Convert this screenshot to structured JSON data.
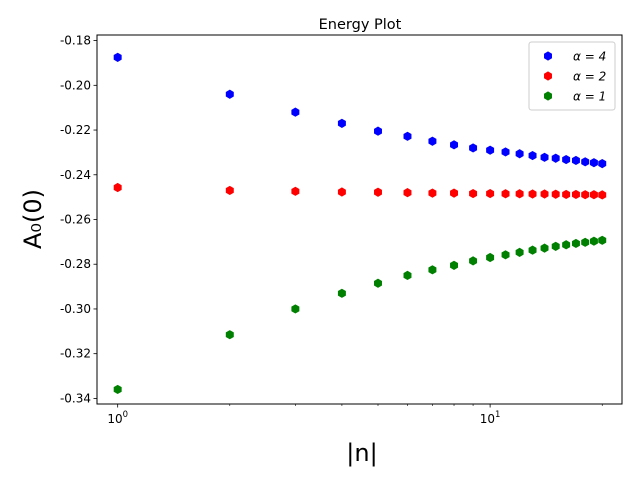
{
  "chart_data": {
    "type": "scatter",
    "title": "Energy Plot",
    "xlabel": "|n|",
    "ylabel": "A₀(0)",
    "xscale": "log",
    "xlim": [
      0.88,
      22.6
    ],
    "ylim": [
      -0.3425,
      -0.1775
    ],
    "xticks": [
      {
        "value": 1,
        "base": "10",
        "exp": "0"
      },
      {
        "value": 10,
        "base": "10",
        "exp": "1"
      }
    ],
    "yticks": [
      "-0.18",
      "-0.20",
      "-0.22",
      "-0.24",
      "-0.26",
      "-0.28",
      "-0.30",
      "-0.32",
      "-0.34"
    ],
    "ytick_values": [
      -0.18,
      -0.2,
      -0.22,
      -0.24,
      -0.26,
      -0.28,
      -0.3,
      -0.32,
      -0.34
    ],
    "x": [
      1,
      2,
      3,
      4,
      5,
      6,
      7,
      8,
      9,
      10,
      11,
      12,
      13,
      14,
      15,
      16,
      17,
      18,
      19,
      20
    ],
    "legend_position": "top-right",
    "series": [
      {
        "name": "α = 4",
        "color": "#0000ff",
        "values": [
          -0.1875,
          -0.204,
          -0.212,
          -0.217,
          -0.2205,
          -0.2228,
          -0.225,
          -0.2266,
          -0.228,
          -0.229,
          -0.2298,
          -0.2306,
          -0.2314,
          -0.2322,
          -0.2326,
          -0.2332,
          -0.2336,
          -0.2342,
          -0.2346,
          -0.235
        ]
      },
      {
        "name": "α = 2",
        "color": "#ff0000",
        "values": [
          -0.2457,
          -0.247,
          -0.2474,
          -0.2477,
          -0.2478,
          -0.248,
          -0.2482,
          -0.2482,
          -0.2484,
          -0.2484,
          -0.2485,
          -0.2485,
          -0.2486,
          -0.2486,
          -0.2487,
          -0.2488,
          -0.2488,
          -0.2489,
          -0.2489,
          -0.249
        ]
      },
      {
        "name": "α = 1",
        "color": "#008000",
        "values": [
          -0.336,
          -0.3115,
          -0.3,
          -0.293,
          -0.2885,
          -0.285,
          -0.2825,
          -0.2805,
          -0.2785,
          -0.277,
          -0.2758,
          -0.2747,
          -0.2737,
          -0.2728,
          -0.272,
          -0.2713,
          -0.2707,
          -0.2702,
          -0.2697,
          -0.2693
        ]
      }
    ]
  }
}
